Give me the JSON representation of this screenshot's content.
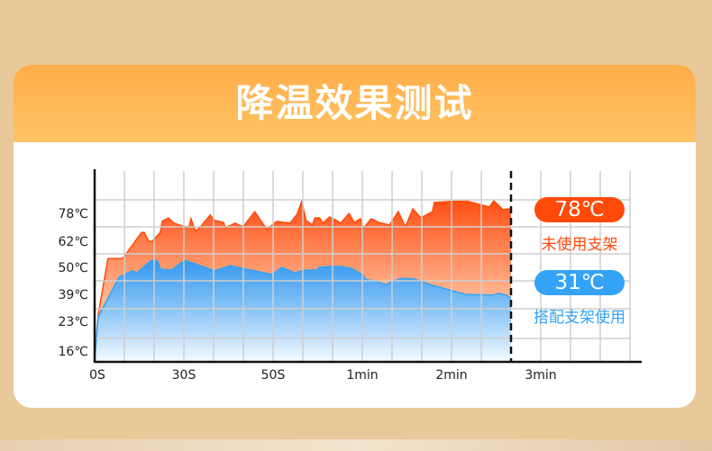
{
  "title": "降温效果测试",
  "colors": {
    "background": "#e9c899",
    "header": "#ffad48",
    "orange": "#ff4a0a",
    "blue": "#35a3f5",
    "grid": "#cfcfcf"
  },
  "legend": [
    {
      "value": "78℃",
      "label": "未使用支架",
      "color": "#ff4a0a"
    },
    {
      "value": "31℃",
      "label": "搭配支架使用",
      "color": "#35a3f5"
    }
  ],
  "chart_data": {
    "type": "area",
    "xlabel": "",
    "ylabel": "",
    "x_unit": "seconds",
    "x_ticks": [
      {
        "label": "0S",
        "value": 0
      },
      {
        "label": "30S",
        "value": 30
      },
      {
        "label": "50S",
        "value": 50
      },
      {
        "label": "1min",
        "value": 60
      },
      {
        "label": "2min",
        "value": 120
      },
      {
        "label": "3min",
        "value": 180
      }
    ],
    "y_ticks": [
      {
        "label": "78℃",
        "value": 78
      },
      {
        "label": "62℃",
        "value": 62
      },
      {
        "label": "50℃",
        "value": 50
      },
      {
        "label": "39℃",
        "value": 39
      },
      {
        "label": "23℃",
        "value": 23
      },
      {
        "label": "16℃",
        "value": 16
      }
    ],
    "y_scale": "non-linear (ticks evenly spaced)",
    "grid": true,
    "marker_line": {
      "x": 160,
      "style": "dashed"
    },
    "legend_placement": "right",
    "series": [
      {
        "name": "未使用支架",
        "color": "#ff4a0a",
        "points": [
          [
            0,
            14
          ],
          [
            1.2,
            27
          ],
          [
            4.5,
            54
          ],
          [
            9.4,
            54
          ],
          [
            15.8,
            67
          ],
          [
            16.7,
            67
          ],
          [
            18.2,
            62
          ],
          [
            19.4,
            62
          ],
          [
            22.1,
            67
          ],
          [
            22.7,
            73.4
          ],
          [
            24.8,
            75.4
          ],
          [
            26.7,
            72.3
          ],
          [
            30.2,
            70.3
          ],
          [
            31.2,
            70.3
          ],
          [
            31.6,
            74.9
          ],
          [
            32.6,
            67.7
          ],
          [
            33.9,
            70.8
          ],
          [
            35.9,
            77
          ],
          [
            36.9,
            73.9
          ],
          [
            38.9,
            72.8
          ],
          [
            39.3,
            69.7
          ],
          [
            41.5,
            72.3
          ],
          [
            43.3,
            70.3
          ],
          [
            45.9,
            79
          ],
          [
            48.6,
            68.7
          ],
          [
            50.4,
            73.4
          ],
          [
            51.9,
            72.3
          ],
          [
            52.7,
            77.5
          ],
          [
            53.2,
            84.7
          ],
          [
            53.7,
            73.9
          ],
          [
            54.4,
            71.3
          ],
          [
            54.7,
            75.4
          ],
          [
            55.2,
            75.4
          ],
          [
            55.6,
            72.3
          ],
          [
            56.3,
            75.9
          ],
          [
            57.1,
            73.9
          ],
          [
            57.6,
            72.3
          ],
          [
            58.5,
            78
          ],
          [
            59.1,
            72.8
          ],
          [
            59.8,
            74.9
          ],
          [
            60.6,
            69.2
          ],
          [
            66,
            74.9
          ],
          [
            71,
            72.8
          ],
          [
            78.2,
            71.3
          ],
          [
            84.2,
            79
          ],
          [
            89,
            70.3
          ],
          [
            94,
            80.6
          ],
          [
            99.4,
            75.4
          ],
          [
            107.2,
            79
          ],
          [
            108.4,
            84.2
          ],
          [
            117.6,
            84.7
          ],
          [
            129.6,
            85.2
          ],
          [
            145.4,
            81.6
          ],
          [
            148.4,
            85.2
          ],
          [
            154.6,
            80.1
          ],
          [
            158.8,
            80.6
          ],
          [
            160,
            80.6
          ]
        ]
      },
      {
        "name": "搭配支架使用",
        "color": "#35a3f5",
        "points": [
          [
            0,
            14
          ],
          [
            1.2,
            25.7
          ],
          [
            8.2,
            46
          ],
          [
            12.7,
            48.6
          ],
          [
            14.2,
            47.8
          ],
          [
            19.1,
            53.3
          ],
          [
            21.2,
            52.9
          ],
          [
            22.1,
            49.3
          ],
          [
            25.8,
            48.9
          ],
          [
            30.2,
            53.3
          ],
          [
            36.9,
            48.6
          ],
          [
            40.3,
            50.8
          ],
          [
            49.8,
            47.1
          ],
          [
            51,
            50
          ],
          [
            52.4,
            47.8
          ],
          [
            53.7,
            48.9
          ],
          [
            54.9,
            48.9
          ],
          [
            55.1,
            50
          ],
          [
            56.3,
            50.4
          ],
          [
            57.6,
            50.4
          ],
          [
            58.8,
            49.6
          ],
          [
            60,
            47.1
          ],
          [
            63,
            44.9
          ],
          [
            67.8,
            44.5
          ],
          [
            75.8,
            43
          ],
          [
            81.2,
            44.5
          ],
          [
            87.2,
            45.6
          ],
          [
            95.2,
            45.2
          ],
          [
            107.2,
            42.7
          ],
          [
            129.6,
            39
          ],
          [
            147.8,
            38.6
          ],
          [
            151.6,
            39.4
          ],
          [
            157,
            38.6
          ],
          [
            158.8,
            37.2
          ],
          [
            160,
            37.2
          ]
        ]
      }
    ]
  }
}
